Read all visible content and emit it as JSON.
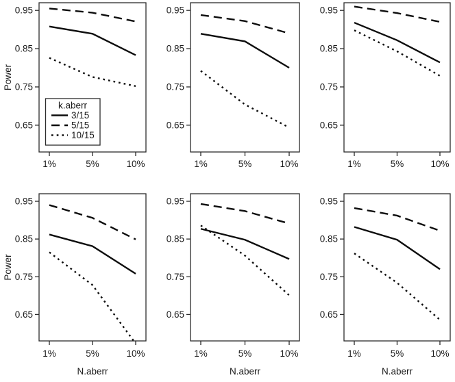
{
  "figure": {
    "background": "#ffffff",
    "line_color": "#0d0d0d",
    "frame_color": "#2b2b2b"
  },
  "chart_data": {
    "type": "line",
    "layout": "2x3-panel-grid",
    "title": "",
    "ylabel": "Power",
    "xlabel": "N.aberr",
    "x_categories": [
      "1%",
      "5%",
      "10%"
    ],
    "yticks": [
      0.95,
      0.85,
      0.75,
      0.65
    ],
    "ytick_labels": [
      "0.95",
      "0.85",
      "0.75",
      "0.65"
    ],
    "ylim": [
      0.58,
      0.97
    ],
    "grid": false,
    "legend": {
      "title": "k.aberr",
      "position": "inside-bottom-left-of-first-panel",
      "entries": [
        {
          "label": "3/15",
          "style": "solid"
        },
        {
          "label": "5/15",
          "style": "dashed"
        },
        {
          "label": "10/15",
          "style": "dotted"
        }
      ]
    },
    "panels": [
      {
        "row": 0,
        "col": 0,
        "has_legend": true,
        "series": [
          {
            "name": "3/15",
            "style": "solid",
            "values": [
              0.908,
              0.889,
              0.833
            ]
          },
          {
            "name": "5/15",
            "style": "dashed",
            "values": [
              0.955,
              0.944,
              0.921
            ]
          },
          {
            "name": "10/15",
            "style": "dotted",
            "values": [
              0.826,
              0.776,
              0.752
            ]
          }
        ]
      },
      {
        "row": 0,
        "col": 1,
        "has_legend": false,
        "series": [
          {
            "name": "3/15",
            "style": "solid",
            "values": [
              0.889,
              0.869,
              0.8
            ]
          },
          {
            "name": "5/15",
            "style": "dashed",
            "values": [
              0.938,
              0.922,
              0.89
            ]
          },
          {
            "name": "10/15",
            "style": "dotted",
            "values": [
              0.792,
              0.704,
              0.644
            ]
          }
        ]
      },
      {
        "row": 0,
        "col": 2,
        "has_legend": false,
        "series": [
          {
            "name": "3/15",
            "style": "solid",
            "values": [
              0.918,
              0.872,
              0.814
            ]
          },
          {
            "name": "5/15",
            "style": "dashed",
            "values": [
              0.96,
              0.943,
              0.92
            ]
          },
          {
            "name": "10/15",
            "style": "dotted",
            "values": [
              0.898,
              0.843,
              0.779
            ]
          }
        ]
      },
      {
        "row": 1,
        "col": 0,
        "has_legend": false,
        "series": [
          {
            "name": "3/15",
            "style": "solid",
            "values": [
              0.862,
              0.831,
              0.758
            ]
          },
          {
            "name": "5/15",
            "style": "dashed",
            "values": [
              0.94,
              0.906,
              0.849
            ]
          },
          {
            "name": "10/15",
            "style": "dotted",
            "values": [
              0.815,
              0.728,
              0.573
            ]
          }
        ]
      },
      {
        "row": 1,
        "col": 1,
        "has_legend": false,
        "series": [
          {
            "name": "3/15",
            "style": "solid",
            "values": [
              0.877,
              0.848,
              0.797
            ]
          },
          {
            "name": "5/15",
            "style": "dashed",
            "values": [
              0.943,
              0.924,
              0.891
            ]
          },
          {
            "name": "10/15",
            "style": "dotted",
            "values": [
              0.886,
              0.806,
              0.701
            ]
          }
        ]
      },
      {
        "row": 1,
        "col": 2,
        "has_legend": false,
        "series": [
          {
            "name": "3/15",
            "style": "solid",
            "values": [
              0.882,
              0.848,
              0.77
            ]
          },
          {
            "name": "5/15",
            "style": "dashed",
            "values": [
              0.932,
              0.912,
              0.872
            ]
          },
          {
            "name": "10/15",
            "style": "dotted",
            "values": [
              0.812,
              0.734,
              0.636
            ]
          }
        ]
      }
    ]
  }
}
